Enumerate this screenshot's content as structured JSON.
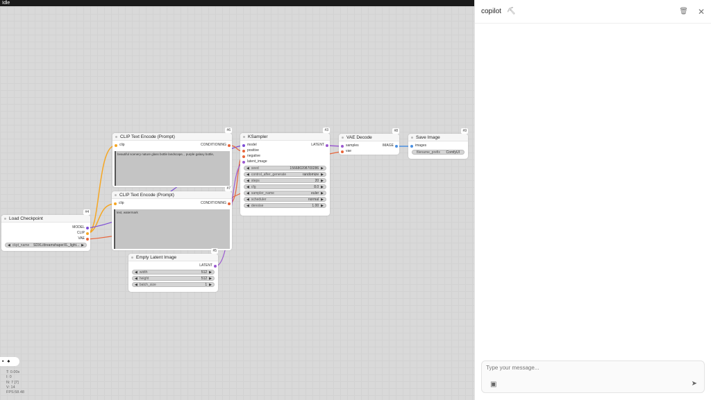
{
  "status": "Idle",
  "nodes": {
    "clip_pos": {
      "id": "#6",
      "title": "CLIP Text Encode (Prompt)",
      "input": "clip",
      "output": "CONDITIONING",
      "text": "beautiful scenery nature glass bottle landscape, , purple galaxy bottle,"
    },
    "clip_neg": {
      "id": "#7",
      "title": "CLIP Text Encode (Prompt)",
      "input": "clip",
      "output": "CONDITIONING",
      "text": "text, watermark"
    },
    "checkpoint": {
      "id": "#4",
      "title": "Load Checkpoint",
      "outputs": [
        "MODEL",
        "CLIP",
        "VAE"
      ],
      "widget": {
        "name": "ckpt_name",
        "value": "SDXL/dreamshaperXL_light..."
      }
    },
    "latent": {
      "id": "#5",
      "title": "Empty Latent Image",
      "output": "LATENT",
      "widgets": [
        {
          "name": "width",
          "value": "512"
        },
        {
          "name": "height",
          "value": "512"
        },
        {
          "name": "batch_size",
          "value": "1"
        }
      ]
    },
    "ksampler": {
      "id": "#3",
      "title": "KSampler",
      "inputs": [
        "model",
        "positive",
        "negative",
        "latent_image"
      ],
      "output": "LATENT",
      "widgets": [
        {
          "name": "seed",
          "value": "156680208700286"
        },
        {
          "name": "control_after_generate",
          "value": "randomize"
        },
        {
          "name": "steps",
          "value": "20"
        },
        {
          "name": "cfg",
          "value": "8.0"
        },
        {
          "name": "sampler_name",
          "value": "euler"
        },
        {
          "name": "scheduler",
          "value": "normal"
        },
        {
          "name": "denoise",
          "value": "1.00"
        }
      ]
    },
    "vae": {
      "id": "#8",
      "title": "VAE Decode",
      "inputs": [
        "samples",
        "vae"
      ],
      "output": "IMAGE"
    },
    "save": {
      "id": "#9",
      "title": "Save Image",
      "input": "images",
      "widget": {
        "name": "filename_prefix",
        "value": "ComfyUI"
      }
    }
  },
  "stats": {
    "t": "T: 0.00s",
    "i": "I: 0",
    "n": "N: 7 [7]",
    "v": "V: 14",
    "fps": "FPS:58.48"
  },
  "panel": {
    "title": "copilot",
    "placeholder": "Type your message..."
  },
  "colors": {
    "model": "#7c4dd6",
    "clip": "#f5a623",
    "vae": "#e8653a",
    "latent": "#9b59d0",
    "image": "#4a90e2",
    "conditioning": "#e8653a"
  }
}
